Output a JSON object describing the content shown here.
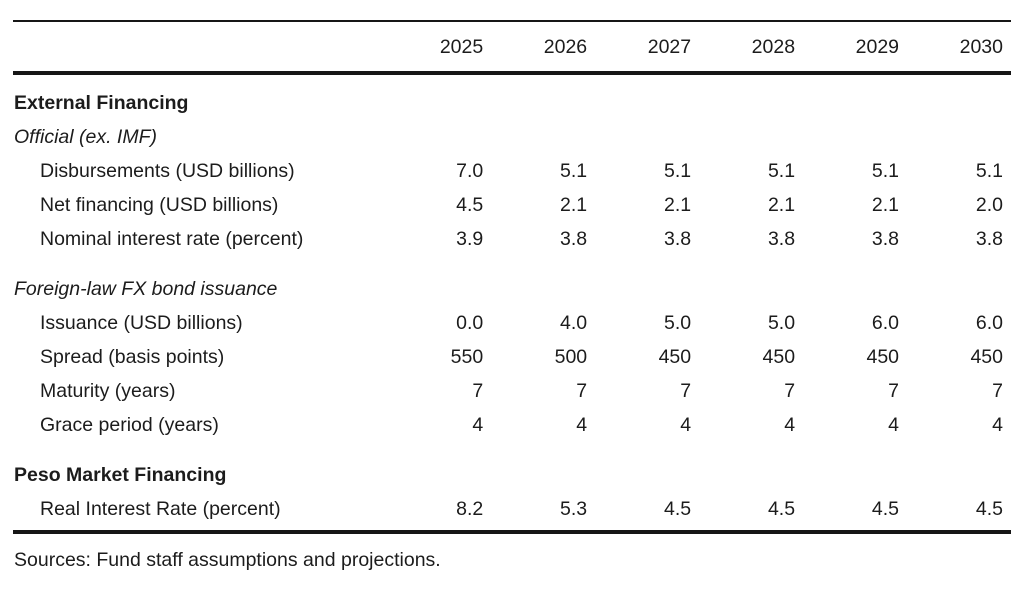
{
  "table": {
    "columns": [
      "2025",
      "2026",
      "2027",
      "2028",
      "2029",
      "2030"
    ],
    "rows": [
      {
        "type": "section",
        "label": "External Financing"
      },
      {
        "type": "subsection",
        "label": "Official (ex. IMF)"
      },
      {
        "type": "data",
        "label": "Disbursements (USD billions)",
        "values": [
          "7.0",
          "5.1",
          "5.1",
          "5.1",
          "5.1",
          "5.1"
        ]
      },
      {
        "type": "data",
        "label": "Net financing (USD billions)",
        "values": [
          "4.5",
          "2.1",
          "2.1",
          "2.1",
          "2.1",
          "2.0"
        ]
      },
      {
        "type": "data",
        "label": "Nominal interest rate (percent)",
        "values": [
          "3.9",
          "3.8",
          "3.8",
          "3.8",
          "3.8",
          "3.8"
        ]
      },
      {
        "type": "subsection",
        "label": "Foreign-law FX bond issuance",
        "spaced": true
      },
      {
        "type": "data",
        "label": "Issuance (USD billions)",
        "values": [
          "0.0",
          "4.0",
          "5.0",
          "5.0",
          "6.0",
          "6.0"
        ]
      },
      {
        "type": "data",
        "label": "Spread (basis points)",
        "values": [
          "550",
          "500",
          "450",
          "450",
          "450",
          "450"
        ]
      },
      {
        "type": "data",
        "label": "Maturity (years)",
        "values": [
          "7",
          "7",
          "7",
          "7",
          "7",
          "7"
        ]
      },
      {
        "type": "data",
        "label": "Grace period (years)",
        "values": [
          "4",
          "4",
          "4",
          "4",
          "4",
          "4"
        ]
      },
      {
        "type": "section",
        "label": "Peso Market Financing",
        "spaced": true
      },
      {
        "type": "data",
        "label": "Real Interest Rate (percent)",
        "values": [
          "8.2",
          "5.3",
          "4.5",
          "4.5",
          "4.5",
          "4.5"
        ]
      }
    ]
  },
  "footer": {
    "sources": "Sources: Fund staff assumptions and projections."
  },
  "colors": {
    "text": "#1c1c1c",
    "rule": "#161616",
    "background": "#ffffff"
  }
}
